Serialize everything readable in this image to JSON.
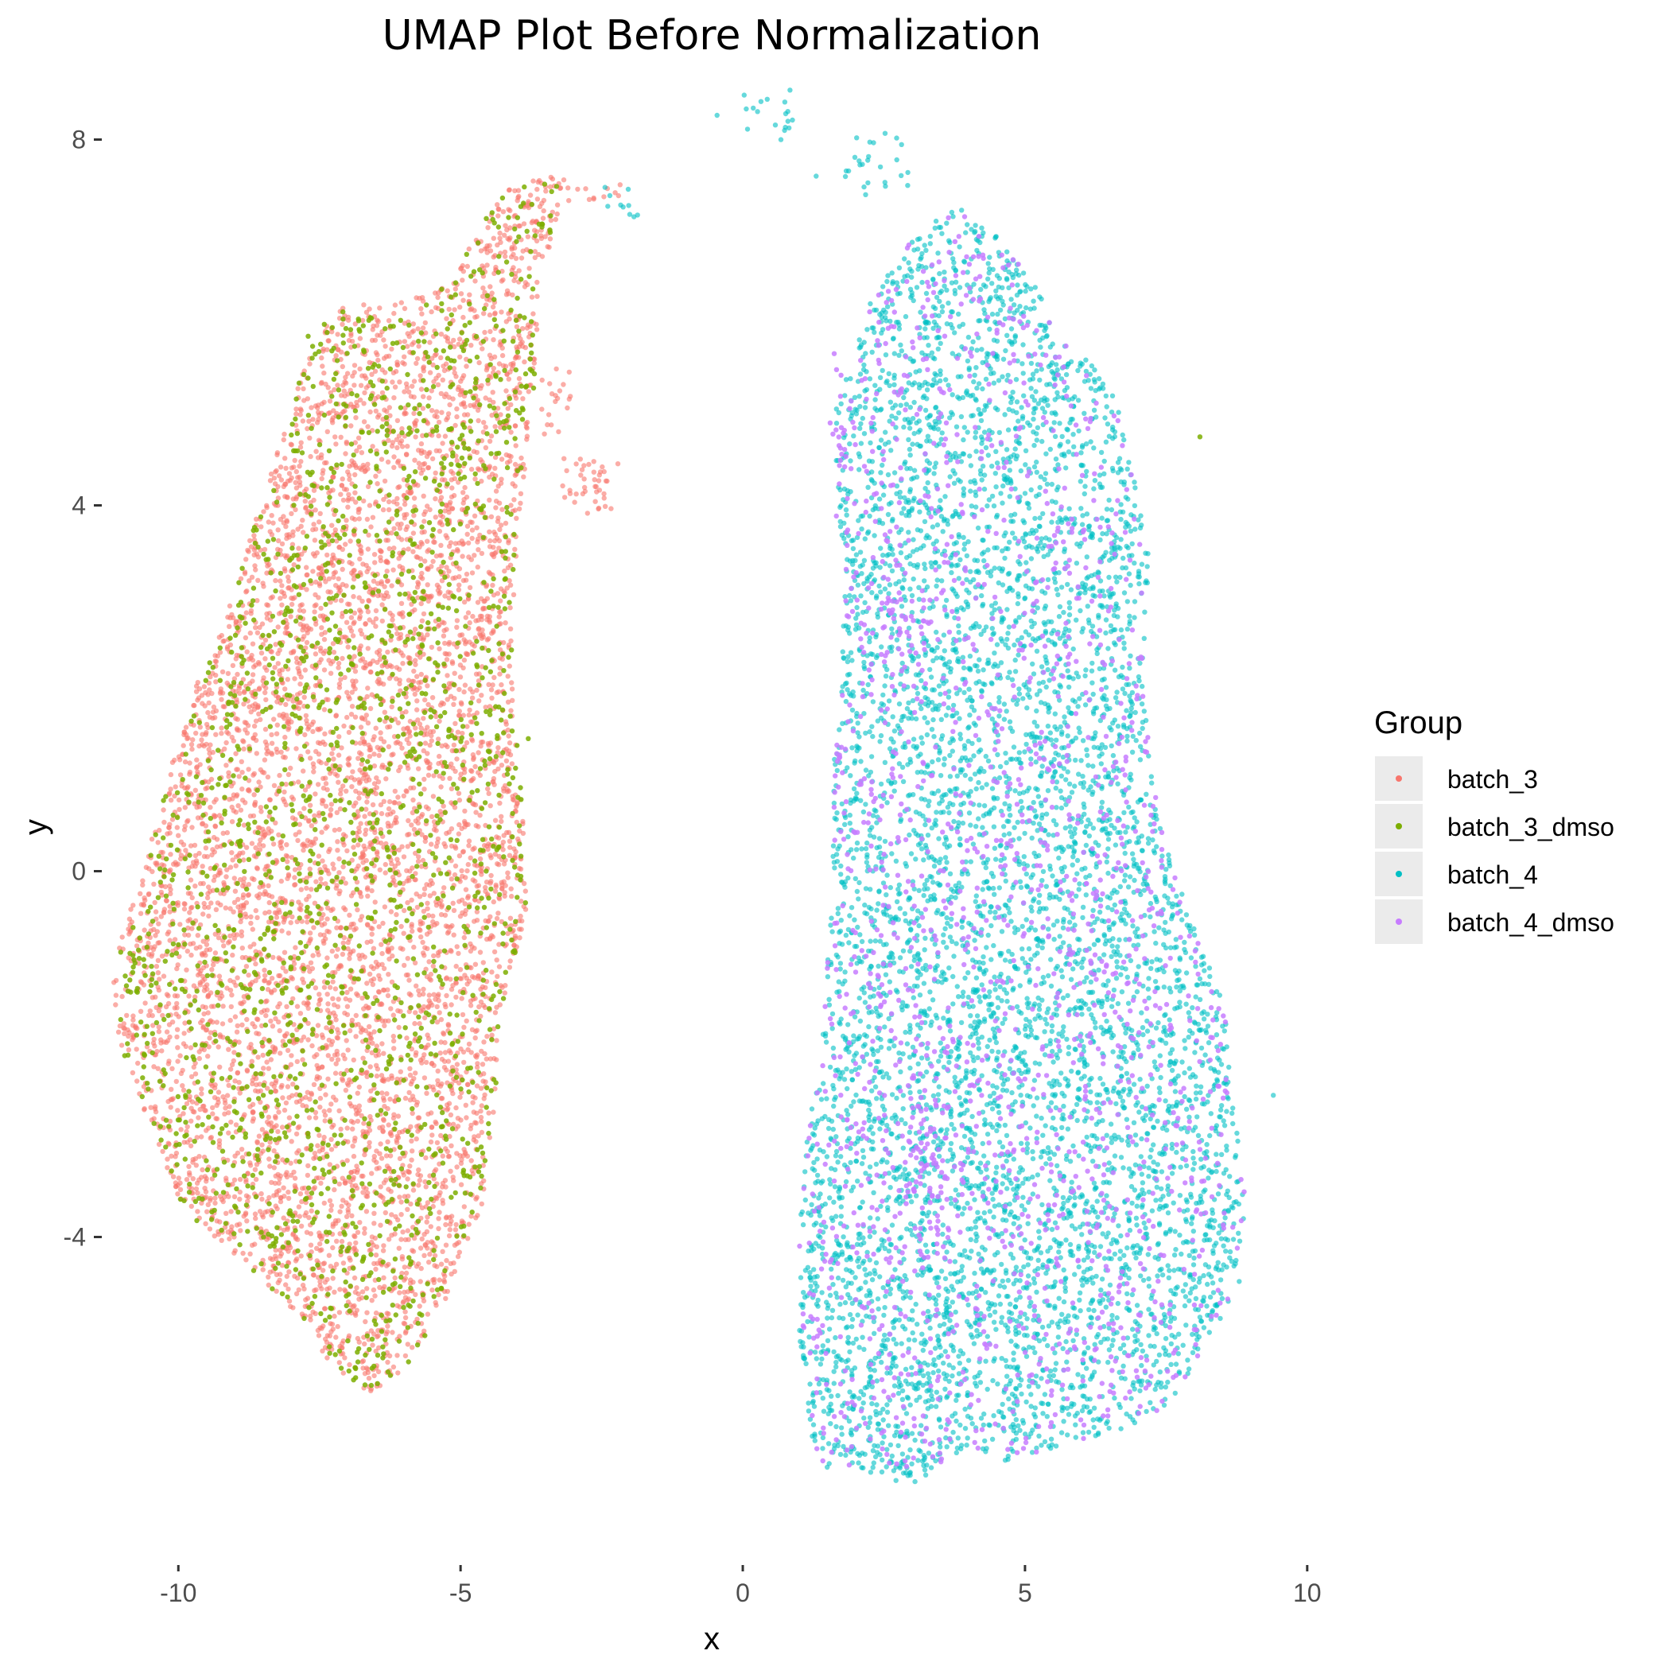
{
  "chart_data": {
    "type": "scatter",
    "title": "UMAP Plot Before Normalization",
    "xlabel": "x",
    "ylabel": "y",
    "xlim": [
      -11.3,
      10.2
    ],
    "ylim": [
      -7.5,
      8.5
    ],
    "x_ticks": [
      -10,
      -5,
      0,
      5,
      10
    ],
    "x_tick_labels": [
      "-10",
      "-5",
      "0",
      "5",
      "10"
    ],
    "y_ticks": [
      -4,
      0,
      4,
      8
    ],
    "y_tick_labels": [
      "-4",
      "0",
      "4",
      "8"
    ],
    "grid": false,
    "legend": {
      "title": "Group",
      "position": "right",
      "entries": [
        "batch_3",
        "batch_3_dmso",
        "batch_4",
        "batch_4_dmso"
      ]
    },
    "series": [
      {
        "name": "batch_3",
        "color": "#F8766D",
        "cluster": "left",
        "approx_points": 6000,
        "shape_outline": [
          [
            -11.2,
            -1.3
          ],
          [
            -11.0,
            -0.7
          ],
          [
            -10.7,
            -0.1
          ],
          [
            -10.4,
            0.5
          ],
          [
            -10.1,
            1.2
          ],
          [
            -9.7,
            2.0
          ],
          [
            -9.2,
            2.7
          ],
          [
            -8.8,
            3.5
          ],
          [
            -8.4,
            4.3
          ],
          [
            -8.0,
            5.1
          ],
          [
            -7.6,
            5.8
          ],
          [
            -7.2,
            6.2
          ],
          [
            -6.4,
            6.2
          ],
          [
            -5.2,
            6.4
          ],
          [
            -4.6,
            7.1
          ],
          [
            -4.0,
            7.6
          ],
          [
            -3.1,
            7.6
          ],
          [
            -3.6,
            6.4
          ],
          [
            -3.7,
            5.2
          ],
          [
            -4.0,
            3.7
          ],
          [
            -4.1,
            2.2
          ],
          [
            -3.9,
            0.8
          ],
          [
            -3.8,
            -0.4
          ],
          [
            -4.3,
            -1.6
          ],
          [
            -4.4,
            -2.6
          ],
          [
            -4.6,
            -3.6
          ],
          [
            -5.2,
            -4.6
          ],
          [
            -5.9,
            -5.4
          ],
          [
            -6.6,
            -5.7
          ],
          [
            -7.2,
            -5.5
          ],
          [
            -7.8,
            -4.9
          ],
          [
            -8.8,
            -4.3
          ],
          [
            -9.9,
            -3.7
          ],
          [
            -10.6,
            -2.7
          ],
          [
            -11.0,
            -2.0
          ]
        ],
        "extra_groups": [
          {
            "x": -2.7,
            "y": 4.2,
            "sx": 0.25,
            "sy": 0.18,
            "n": 40
          },
          {
            "x": -3.3,
            "y": 5.1,
            "sx": 0.15,
            "sy": 0.25,
            "n": 20
          },
          {
            "x": -2.6,
            "y": 7.4,
            "sx": 0.3,
            "sy": 0.06,
            "n": 12
          }
        ]
      },
      {
        "name": "batch_3_dmso",
        "color": "#7CAE00",
        "cluster": "left",
        "approx_points": 1900,
        "extra_points": [
          [
            8.1,
            4.75
          ],
          [
            -7.7,
            5.85
          ],
          [
            -8.3,
            -4.1
          ],
          [
            -3.8,
            1.45
          ]
        ]
      },
      {
        "name": "batch_4",
        "color": "#00BFC4",
        "cluster": "right",
        "approx_points": 6500,
        "shape_outline": [
          [
            1.6,
            5.0
          ],
          [
            2.3,
            6.3
          ],
          [
            3.0,
            6.9
          ],
          [
            3.8,
            7.3
          ],
          [
            4.6,
            6.9
          ],
          [
            5.2,
            6.4
          ],
          [
            5.6,
            5.8
          ],
          [
            6.1,
            5.6
          ],
          [
            6.6,
            5.2
          ],
          [
            6.9,
            4.4
          ],
          [
            7.2,
            3.5
          ],
          [
            7.1,
            2.2
          ],
          [
            7.2,
            1.3
          ],
          [
            7.4,
            0.5
          ],
          [
            8.0,
            -0.6
          ],
          [
            8.6,
            -1.6
          ],
          [
            8.7,
            -2.6
          ],
          [
            8.9,
            -3.5
          ],
          [
            8.8,
            -4.5
          ],
          [
            8.2,
            -5.2
          ],
          [
            7.6,
            -5.8
          ],
          [
            6.8,
            -6.1
          ],
          [
            5.6,
            -6.3
          ],
          [
            4.8,
            -6.5
          ],
          [
            4.1,
            -6.3
          ],
          [
            3.0,
            -6.7
          ],
          [
            2.2,
            -6.6
          ],
          [
            1.3,
            -6.5
          ],
          [
            1.0,
            -5.2
          ],
          [
            1.0,
            -4.0
          ],
          [
            1.1,
            -3.0
          ],
          [
            1.4,
            -2.0
          ],
          [
            1.5,
            -1.0
          ],
          [
            1.6,
            0.0
          ],
          [
            1.6,
            1.0
          ],
          [
            1.7,
            2.0
          ],
          [
            1.8,
            3.0
          ],
          [
            1.7,
            4.0
          ]
        ],
        "extra_groups": [
          {
            "x": 0.5,
            "y": 8.3,
            "sx": 0.3,
            "sy": 0.1,
            "n": 18
          },
          {
            "x": 2.3,
            "y": 7.75,
            "sx": 0.35,
            "sy": 0.2,
            "n": 25
          },
          {
            "x": -2.1,
            "y": 7.3,
            "sx": 0.15,
            "sy": 0.12,
            "n": 10
          }
        ],
        "extra_points": [
          [
            9.4,
            -2.45
          ],
          [
            0.8,
            8.2
          ],
          [
            1.3,
            7.6
          ]
        ]
      },
      {
        "name": "batch_4_dmso",
        "color": "#C77CFF",
        "cluster": "right",
        "approx_points": 1700,
        "extra_groups": [
          {
            "x": 3.4,
            "y": -3.4,
            "sx": 0.3,
            "sy": 0.4,
            "n": 70
          },
          {
            "x": 2.7,
            "y": 2.6,
            "sx": 0.3,
            "sy": 0.2,
            "n": 30
          },
          {
            "x": 1.7,
            "y": 4.6,
            "sx": 0.1,
            "sy": 0.4,
            "n": 15
          },
          {
            "x": 1.7,
            "y": 1.2,
            "sx": 0.05,
            "sy": 0.15,
            "n": 8
          }
        ]
      }
    ]
  }
}
